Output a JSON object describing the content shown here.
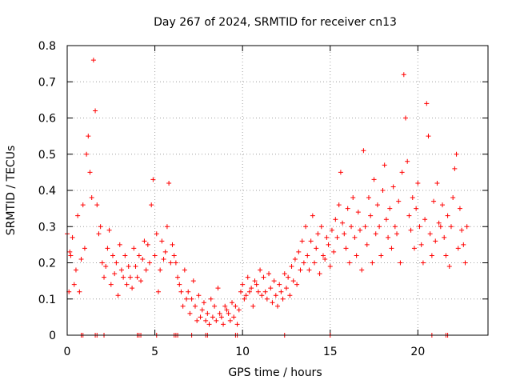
{
  "chart_data": {
    "type": "scatter",
    "title": "Day 267 of 2024, SRMTID for receiver cn13",
    "xlabel": "GPS time / hours",
    "ylabel": "SRMTID / TECUs",
    "xlim": [
      0,
      24
    ],
    "ylim": [
      0,
      0.8
    ],
    "xticks": [
      0,
      5,
      10,
      15,
      20
    ],
    "xtick_labels": [
      "0",
      "5",
      "10",
      "15",
      "20"
    ],
    "yticks": [
      0,
      0.1,
      0.2,
      0.3,
      0.4,
      0.5,
      0.6,
      0.7,
      0.8
    ],
    "ytick_labels": [
      "0",
      "0.1",
      "0.2",
      "0.3",
      "0.4",
      "0.5",
      "0.6",
      "0.7",
      "0.8"
    ],
    "grid": true,
    "marker": "plus",
    "series": [
      {
        "name": "SRMTID",
        "color": "#ff0000",
        "x": [
          0.0,
          0.1,
          0.2,
          0.3,
          0.4,
          0.5,
          0.6,
          0.7,
          0.8,
          0.9,
          1.0,
          1.1,
          1.2,
          1.3,
          1.4,
          1.5,
          1.6,
          1.7,
          1.8,
          1.9,
          2.0,
          2.1,
          2.2,
          2.3,
          2.4,
          2.5,
          2.6,
          2.7,
          2.8,
          2.9,
          3.0,
          3.1,
          3.2,
          3.3,
          3.4,
          3.5,
          3.6,
          3.7,
          3.8,
          3.9,
          4.0,
          4.1,
          4.2,
          4.3,
          4.4,
          4.5,
          4.6,
          4.7,
          4.8,
          4.9,
          5.0,
          5.1,
          5.2,
          5.3,
          5.4,
          5.5,
          5.6,
          5.7,
          5.8,
          5.9,
          6.0,
          6.1,
          6.2,
          6.3,
          6.4,
          6.5,
          6.6,
          6.7,
          6.8,
          6.9,
          7.0,
          7.1,
          7.2,
          7.3,
          7.4,
          7.5,
          7.6,
          7.7,
          7.8,
          7.9,
          8.0,
          8.1,
          8.2,
          8.3,
          8.4,
          8.5,
          8.6,
          8.7,
          8.8,
          8.9,
          9.0,
          9.1,
          9.2,
          9.3,
          9.4,
          9.5,
          9.6,
          9.7,
          9.8,
          9.9,
          10.0,
          10.1,
          10.2,
          10.3,
          10.4,
          10.5,
          10.6,
          10.7,
          10.8,
          10.9,
          11.0,
          11.1,
          11.2,
          11.3,
          11.4,
          11.5,
          11.6,
          11.7,
          11.8,
          11.9,
          12.0,
          12.1,
          12.2,
          12.3,
          12.4,
          12.5,
          12.6,
          12.7,
          12.8,
          12.9,
          13.0,
          13.1,
          13.2,
          13.3,
          13.4,
          13.5,
          13.6,
          13.7,
          13.8,
          13.9,
          14.0,
          14.1,
          14.2,
          14.3,
          14.4,
          14.5,
          14.6,
          14.7,
          14.8,
          14.9,
          15.0,
          15.1,
          15.2,
          15.3,
          15.4,
          15.5,
          15.6,
          15.7,
          15.8,
          15.9,
          16.0,
          16.1,
          16.2,
          16.3,
          16.4,
          16.5,
          16.6,
          16.7,
          16.8,
          16.9,
          17.0,
          17.1,
          17.2,
          17.3,
          17.4,
          17.5,
          17.6,
          17.7,
          17.8,
          17.9,
          18.0,
          18.1,
          18.2,
          18.3,
          18.4,
          18.5,
          18.6,
          18.7,
          18.8,
          18.9,
          19.0,
          19.1,
          19.2,
          19.3,
          19.4,
          19.5,
          19.6,
          19.7,
          19.8,
          19.9,
          20.0,
          20.1,
          20.2,
          20.3,
          20.4,
          20.5,
          20.6,
          20.7,
          20.8,
          20.9,
          21.0,
          21.1,
          21.2,
          21.3,
          21.4,
          21.5,
          21.6,
          21.7,
          21.8,
          21.9,
          22.0,
          22.1,
          22.2,
          22.3,
          22.4,
          22.5,
          22.6,
          22.7,
          22.8,
          0.15,
          0.28,
          0.12,
          0.22,
          0.27,
          0.14,
          0.18,
          0.33,
          0.12,
          0.21,
          0.36,
          0.24,
          0.5,
          0.55,
          0.45,
          0.38,
          0.76,
          0.62,
          0.36,
          0.28,
          0.3,
          0.2,
          0.16,
          0.19,
          0.24,
          0.29,
          0.14,
          0.22,
          0.17,
          0.2,
          0.11,
          0.25,
          0.18,
          0.16,
          0.22,
          0.14,
          0.19,
          0.16,
          0.13,
          0.24,
          0.19,
          0.16,
          0.22,
          0.15,
          0.21,
          0.26,
          0.18,
          0.25,
          0.2,
          0.36,
          0.43,
          0.22,
          0.28,
          0.12,
          0.18,
          0.26,
          0.21,
          0.23,
          0.3,
          0.42,
          0.2,
          0.25,
          0.22,
          0.2,
          0.16,
          0.14,
          0.12,
          0.08,
          0.18,
          0.1,
          0.12,
          0.06,
          0.1,
          0.15,
          0.08,
          0.04,
          0.11,
          0.05,
          0.07,
          0.09,
          0.04,
          0.06,
          0.03,
          0.1,
          0.05,
          0.08,
          0.04,
          0.13,
          0.06,
          0.05,
          0.03,
          0.08,
          0.07,
          0.06,
          0.04,
          0.09,
          0.05,
          0.08,
          0.03,
          0.07,
          0.12,
          0.14,
          0.1,
          0.11,
          0.16,
          0.12,
          0.13,
          0.08,
          0.15,
          0.14,
          0.12,
          0.18,
          0.11,
          0.16,
          0.12,
          0.1,
          0.17,
          0.13,
          0.09,
          0.15,
          0.11,
          0.08,
          0.14,
          0.12,
          0.1,
          0.17,
          0.13,
          0.16,
          0.11,
          0.19,
          0.15,
          0.21,
          0.14,
          0.23,
          0.18,
          0.26,
          0.2,
          0.3,
          0.22,
          0.18,
          0.26,
          0.33,
          0.2,
          0.24,
          0.28,
          0.17,
          0.3,
          0.22,
          0.21,
          0.27,
          0.25,
          0.19,
          0.29,
          0.23,
          0.32,
          0.27,
          0.36,
          0.45,
          0.31,
          0.28,
          0.24,
          0.35,
          0.2,
          0.3,
          0.38,
          0.27,
          0.22,
          0.34,
          0.29,
          0.18,
          0.51,
          0.3,
          0.25,
          0.38,
          0.33,
          0.2,
          0.43,
          0.28,
          0.36,
          0.3,
          0.22,
          0.4,
          0.47,
          0.32,
          0.27,
          0.35,
          0.24,
          0.41,
          0.3,
          0.28,
          0.37,
          0.2,
          0.45,
          0.72,
          0.6,
          0.48,
          0.33,
          0.29,
          0.38,
          0.24,
          0.35,
          0.42,
          0.3,
          0.25,
          0.2,
          0.32,
          0.64,
          0.55,
          0.28,
          0.22,
          0.37,
          0.26,
          0.42,
          0.31,
          0.3,
          0.36,
          0.27,
          0.22,
          0.33,
          0.19,
          0.3,
          0.38,
          0.46,
          0.5,
          0.24,
          0.35,
          0.29,
          0.25,
          0.2,
          0.3,
          0.23
        ]
      }
    ],
    "zero_cluster_x": [
      0.8,
      0.9,
      1.6,
      1.7,
      2.1,
      4.0,
      4.1,
      4.2,
      5.1,
      6.1,
      6.2,
      6.3,
      7.1,
      7.9,
      8.0,
      9.6,
      9.7,
      12.4,
      15.0,
      20.8,
      21.6,
      21.7
    ]
  }
}
